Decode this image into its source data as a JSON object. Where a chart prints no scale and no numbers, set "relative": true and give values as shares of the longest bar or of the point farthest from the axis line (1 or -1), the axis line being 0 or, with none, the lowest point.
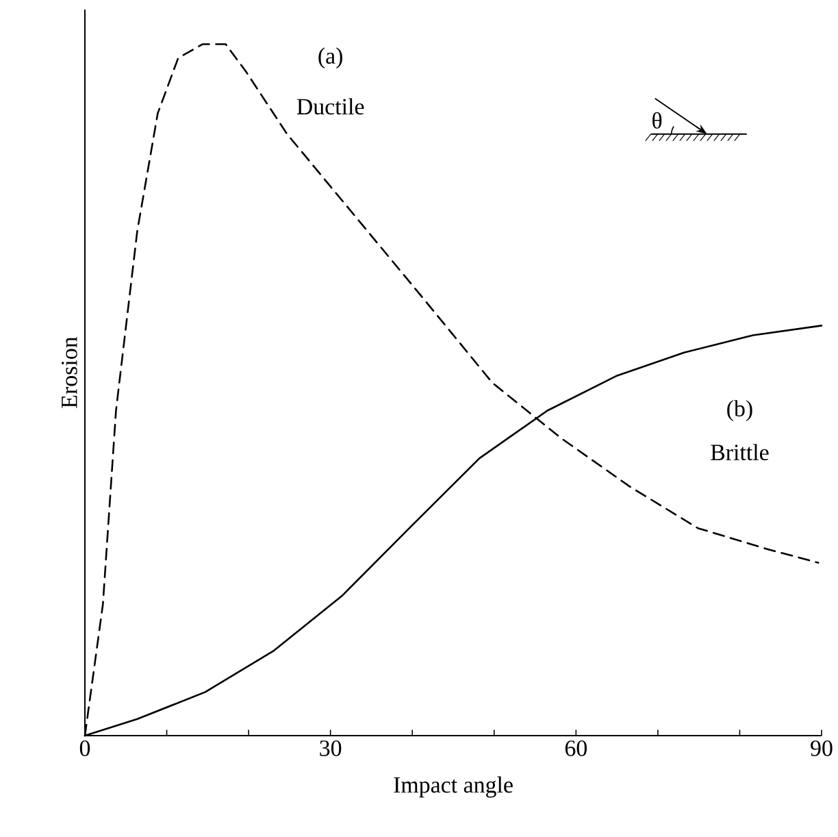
{
  "chart_data": {
    "type": "line",
    "relative": true,
    "xlabel": "Impact angle",
    "ylabel": "Erosion",
    "xlim": [
      0,
      90
    ],
    "xticks": [
      0,
      {
        "value": 10,
        "label": null
      },
      {
        "value": 20,
        "label": null
      },
      30,
      {
        "value": 40,
        "label": null
      },
      {
        "value": 50,
        "label": null
      },
      60,
      {
        "value": 70,
        "label": null
      },
      {
        "value": 80,
        "label": null
      },
      90
    ],
    "marker": "none",
    "series": [
      {
        "color": "#000000",
        "line_style": "dashed",
        "x": [
          0,
          2.2,
          3.8,
          6.4,
          8.9,
          11.4,
          14.4,
          17.2,
          19.7,
          24.7,
          33.1,
          41.5,
          49.8,
          58.2,
          66.6,
          74.9,
          83.3,
          89.6
        ],
        "values": [
          0,
          0.19,
          0.47,
          0.73,
          0.9,
          0.98,
          1.0,
          1.0,
          0.96,
          0.87,
          0.75,
          0.63,
          0.51,
          0.43,
          0.36,
          0.3,
          0.27,
          0.25
        ]
      },
      {
        "color": "#000000",
        "line_style": "solid",
        "x": [
          0,
          6.4,
          14.7,
          23.1,
          31.4,
          39.8,
          48.2,
          56.5,
          64.9,
          73.2,
          81.6,
          90
        ],
        "values": [
          0,
          0.024,
          0.063,
          0.123,
          0.202,
          0.302,
          0.401,
          0.47,
          0.52,
          0.554,
          0.579,
          0.593
        ]
      }
    ],
    "annotations": [
      "(a)",
      "Ductile",
      "(b)",
      "Brittle",
      "θ"
    ]
  }
}
